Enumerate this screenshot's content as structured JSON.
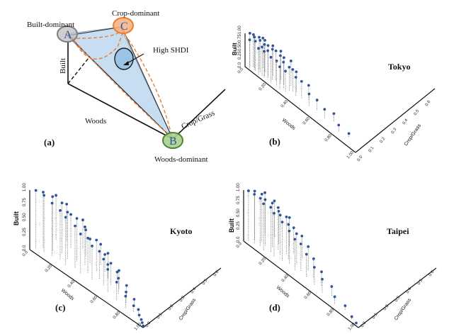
{
  "colors": {
    "text": "#111111",
    "axis": "#111111",
    "marker": "#2f5597",
    "stem": "#555555",
    "built_fill": "#bfbfbf",
    "crop_fill": "#f4b183",
    "crop_stroke": "#ed7d31",
    "woods_fill": "#a9d18e",
    "woods_stroke": "#548235",
    "triangle_fill": "#bdd7ee",
    "shdi_fill": "#9dc3e6",
    "dashed_orange": "#ed7d31",
    "letter_blue": "#2f5597"
  },
  "panel_a": {
    "panel_label": "(a)",
    "built_dominant": "Built-dominant",
    "crop_dominant": "Crop-dominant",
    "woods_dominant": "Woods-dominant",
    "high_shdi": "High SHDI",
    "axis_built": "Built",
    "axis_woods": "Woods",
    "axis_cropgrass": "Crop/Grass",
    "vertex_a": "A",
    "vertex_b": "B",
    "vertex_c": "C"
  },
  "chart_data": [
    {
      "type": "scatter",
      "panel": "(b)",
      "title": "Tokyo",
      "zlabel": "Built",
      "xlabel": "Woods",
      "ylabel": "Crop/Grass",
      "z_ticks": [
        "0.0",
        "0.25",
        "0.50",
        "0.75",
        "1.00"
      ],
      "woods_ticks": [
        "0.0",
        "0.20",
        "0.40",
        "0.60",
        "0.80",
        "1.00"
      ],
      "crop_ticks": [
        "0.0",
        "0.1",
        "0.2",
        "0.3",
        "0.4",
        "0.5",
        "0.6"
      ],
      "points": [
        {
          "x": 0.02,
          "y": 0.02,
          "z": 0.99
        },
        {
          "x": 0.04,
          "y": 0.03,
          "z": 0.97
        },
        {
          "x": 0.06,
          "y": 0.02,
          "z": 0.98
        },
        {
          "x": 0.08,
          "y": 0.04,
          "z": 0.96
        },
        {
          "x": 0.1,
          "y": 0.03,
          "z": 0.95
        },
        {
          "x": 0.12,
          "y": 0.05,
          "z": 0.94
        },
        {
          "x": 0.14,
          "y": 0.03,
          "z": 0.93
        },
        {
          "x": 0.16,
          "y": 0.04,
          "z": 0.92
        },
        {
          "x": 0.18,
          "y": 0.06,
          "z": 0.9
        },
        {
          "x": 0.2,
          "y": 0.04,
          "z": 0.91
        },
        {
          "x": 0.22,
          "y": 0.05,
          "z": 0.88
        },
        {
          "x": 0.24,
          "y": 0.07,
          "z": 0.86
        },
        {
          "x": 0.26,
          "y": 0.05,
          "z": 0.84
        },
        {
          "x": 0.28,
          "y": 0.06,
          "z": 0.8
        },
        {
          "x": 0.3,
          "y": 0.04,
          "z": 0.78
        },
        {
          "x": 0.32,
          "y": 0.08,
          "z": 0.74
        },
        {
          "x": 0.34,
          "y": 0.05,
          "z": 0.7
        },
        {
          "x": 0.36,
          "y": 0.06,
          "z": 0.65
        },
        {
          "x": 0.38,
          "y": 0.07,
          "z": 0.6
        },
        {
          "x": 0.4,
          "y": 0.05,
          "z": 0.55
        },
        {
          "x": 0.44,
          "y": 0.06,
          "z": 0.5
        },
        {
          "x": 0.48,
          "y": 0.08,
          "z": 0.42
        },
        {
          "x": 0.52,
          "y": 0.05,
          "z": 0.36
        },
        {
          "x": 0.58,
          "y": 0.06,
          "z": 0.3
        },
        {
          "x": 0.66,
          "y": 0.05,
          "z": 0.26
        },
        {
          "x": 0.72,
          "y": 0.07,
          "z": 0.22
        },
        {
          "x": 0.8,
          "y": 0.04,
          "z": 0.18
        },
        {
          "x": 0.88,
          "y": 0.05,
          "z": 0.1
        },
        {
          "x": 0.03,
          "y": 0.01,
          "z": 0.85
        },
        {
          "x": 0.07,
          "y": 0.02,
          "z": 0.88
        },
        {
          "x": 0.11,
          "y": 0.01,
          "z": 0.8
        },
        {
          "x": 0.15,
          "y": 0.02,
          "z": 0.78
        },
        {
          "x": 0.05,
          "y": 0.03,
          "z": 0.92
        },
        {
          "x": 0.09,
          "y": 0.06,
          "z": 0.9
        },
        {
          "x": 0.13,
          "y": 0.02,
          "z": 0.86
        },
        {
          "x": 0.17,
          "y": 0.03,
          "z": 0.82
        },
        {
          "x": 0.21,
          "y": 0.02,
          "z": 0.76
        },
        {
          "x": 0.25,
          "y": 0.03,
          "z": 0.72
        },
        {
          "x": 0.29,
          "y": 0.02,
          "z": 0.68
        },
        {
          "x": 0.33,
          "y": 0.03,
          "z": 0.62
        }
      ]
    },
    {
      "type": "scatter",
      "panel": "(c)",
      "title": "Kyoto",
      "zlabel": "Built",
      "xlabel": "Woods",
      "ylabel": "Crop/Grass",
      "z_ticks": [
        "0.0",
        "0.25",
        "0.50",
        "0.75",
        "1.00"
      ],
      "woods_ticks": [
        "0.0",
        "0.20",
        "0.40",
        "0.60",
        "0.80",
        "1.00"
      ],
      "crop_ticks": [
        "0.0",
        "0.1",
        "0.2",
        "0.3",
        "0.4",
        "0.5",
        "0.6"
      ],
      "points": [
        {
          "x": 0.02,
          "y": 0.03,
          "z": 0.97
        },
        {
          "x": 0.05,
          "y": 0.06,
          "z": 0.93
        },
        {
          "x": 0.08,
          "y": 0.04,
          "z": 0.95
        },
        {
          "x": 0.11,
          "y": 0.08,
          "z": 0.9
        },
        {
          "x": 0.14,
          "y": 0.05,
          "z": 0.88
        },
        {
          "x": 0.17,
          "y": 0.1,
          "z": 0.84
        },
        {
          "x": 0.2,
          "y": 0.06,
          "z": 0.82
        },
        {
          "x": 0.23,
          "y": 0.09,
          "z": 0.78
        },
        {
          "x": 0.26,
          "y": 0.05,
          "z": 0.8
        },
        {
          "x": 0.29,
          "y": 0.11,
          "z": 0.72
        },
        {
          "x": 0.32,
          "y": 0.07,
          "z": 0.7
        },
        {
          "x": 0.35,
          "y": 0.12,
          "z": 0.64
        },
        {
          "x": 0.38,
          "y": 0.06,
          "z": 0.66
        },
        {
          "x": 0.41,
          "y": 0.09,
          "z": 0.58
        },
        {
          "x": 0.44,
          "y": 0.13,
          "z": 0.52
        },
        {
          "x": 0.47,
          "y": 0.07,
          "z": 0.56
        },
        {
          "x": 0.5,
          "y": 0.1,
          "z": 0.46
        },
        {
          "x": 0.53,
          "y": 0.14,
          "z": 0.4
        },
        {
          "x": 0.56,
          "y": 0.08,
          "z": 0.44
        },
        {
          "x": 0.59,
          "y": 0.11,
          "z": 0.36
        },
        {
          "x": 0.62,
          "y": 0.06,
          "z": 0.38
        },
        {
          "x": 0.65,
          "y": 0.12,
          "z": 0.3
        },
        {
          "x": 0.68,
          "y": 0.09,
          "z": 0.26
        },
        {
          "x": 0.71,
          "y": 0.05,
          "z": 0.3
        },
        {
          "x": 0.74,
          "y": 0.1,
          "z": 0.2
        },
        {
          "x": 0.77,
          "y": 0.07,
          "z": 0.18
        },
        {
          "x": 0.8,
          "y": 0.04,
          "z": 0.2
        },
        {
          "x": 0.83,
          "y": 0.08,
          "z": 0.12
        },
        {
          "x": 0.86,
          "y": 0.05,
          "z": 0.1
        },
        {
          "x": 0.89,
          "y": 0.06,
          "z": 0.06
        },
        {
          "x": 0.92,
          "y": 0.04,
          "z": 0.04
        },
        {
          "x": 0.95,
          "y": 0.03,
          "z": 0.02
        },
        {
          "x": 0.97,
          "y": 0.02,
          "z": 0.01
        },
        {
          "x": 0.99,
          "y": 0.01,
          "z": 0.0
        },
        {
          "x": 0.06,
          "y": 0.15,
          "z": 0.74
        },
        {
          "x": 0.12,
          "y": 0.18,
          "z": 0.62
        },
        {
          "x": 0.18,
          "y": 0.16,
          "z": 0.56
        },
        {
          "x": 0.24,
          "y": 0.2,
          "z": 0.48
        },
        {
          "x": 0.3,
          "y": 0.17,
          "z": 0.44
        },
        {
          "x": 0.36,
          "y": 0.15,
          "z": 0.4
        },
        {
          "x": 0.42,
          "y": 0.18,
          "z": 0.34
        },
        {
          "x": 0.48,
          "y": 0.16,
          "z": 0.28
        },
        {
          "x": 0.54,
          "y": 0.13,
          "z": 0.24
        },
        {
          "x": 0.6,
          "y": 0.15,
          "z": 0.16
        }
      ]
    },
    {
      "type": "scatter",
      "panel": "(d)",
      "title": "Taipei",
      "zlabel": "Built",
      "xlabel": "Woods",
      "ylabel": "Crop/Grass",
      "z_ticks": [
        "0.0",
        "0.25",
        "0.50",
        "0.75",
        "1.00"
      ],
      "woods_ticks": [
        "0.0",
        "0.20",
        "0.40",
        "0.60",
        "0.80",
        "1.00"
      ],
      "crop_ticks": [
        "0.0",
        "0.1",
        "0.2",
        "0.3",
        "0.4",
        "0.5",
        "0.6"
      ],
      "points": [
        {
          "x": 0.02,
          "y": 0.02,
          "z": 0.98
        },
        {
          "x": 0.04,
          "y": 0.05,
          "z": 0.95
        },
        {
          "x": 0.06,
          "y": 0.03,
          "z": 0.96
        },
        {
          "x": 0.08,
          "y": 0.07,
          "z": 0.92
        },
        {
          "x": 0.1,
          "y": 0.04,
          "z": 0.93
        },
        {
          "x": 0.12,
          "y": 0.06,
          "z": 0.9
        },
        {
          "x": 0.14,
          "y": 0.03,
          "z": 0.91
        },
        {
          "x": 0.16,
          "y": 0.08,
          "z": 0.86
        },
        {
          "x": 0.18,
          "y": 0.05,
          "z": 0.87
        },
        {
          "x": 0.2,
          "y": 0.09,
          "z": 0.82
        },
        {
          "x": 0.22,
          "y": 0.04,
          "z": 0.84
        },
        {
          "x": 0.24,
          "y": 0.07,
          "z": 0.78
        },
        {
          "x": 0.26,
          "y": 0.1,
          "z": 0.72
        },
        {
          "x": 0.28,
          "y": 0.05,
          "z": 0.75
        },
        {
          "x": 0.3,
          "y": 0.08,
          "z": 0.68
        },
        {
          "x": 0.33,
          "y": 0.06,
          "z": 0.64
        },
        {
          "x": 0.36,
          "y": 0.09,
          "z": 0.58
        },
        {
          "x": 0.39,
          "y": 0.05,
          "z": 0.6
        },
        {
          "x": 0.42,
          "y": 0.07,
          "z": 0.52
        },
        {
          "x": 0.45,
          "y": 0.1,
          "z": 0.46
        },
        {
          "x": 0.48,
          "y": 0.06,
          "z": 0.44
        },
        {
          "x": 0.52,
          "y": 0.08,
          "z": 0.38
        },
        {
          "x": 0.56,
          "y": 0.05,
          "z": 0.34
        },
        {
          "x": 0.6,
          "y": 0.07,
          "z": 0.28
        },
        {
          "x": 0.64,
          "y": 0.04,
          "z": 0.26
        },
        {
          "x": 0.7,
          "y": 0.06,
          "z": 0.18
        },
        {
          "x": 0.76,
          "y": 0.03,
          "z": 0.14
        },
        {
          "x": 0.84,
          "y": 0.04,
          "z": 0.08
        },
        {
          "x": 0.92,
          "y": 0.02,
          "z": 0.04
        },
        {
          "x": 0.97,
          "y": 0.01,
          "z": 0.02
        },
        {
          "x": 0.05,
          "y": 0.12,
          "z": 0.8
        },
        {
          "x": 0.11,
          "y": 0.14,
          "z": 0.7
        },
        {
          "x": 0.17,
          "y": 0.12,
          "z": 0.64
        },
        {
          "x": 0.23,
          "y": 0.15,
          "z": 0.56
        },
        {
          "x": 0.29,
          "y": 0.13,
          "z": 0.5
        },
        {
          "x": 0.35,
          "y": 0.14,
          "z": 0.42
        }
      ]
    }
  ]
}
